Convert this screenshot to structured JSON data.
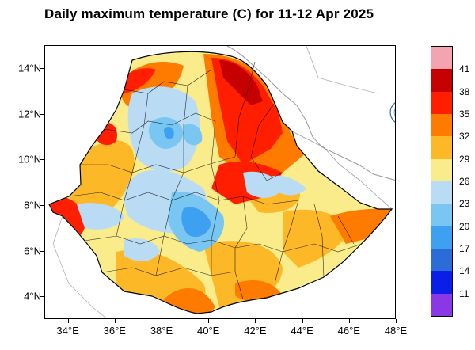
{
  "title": "Daily maximum temperature (C) for 11-12 Apr 2025",
  "map": {
    "lat_labels": [
      {
        "text": "14°N",
        "lat": 14
      },
      {
        "text": "12°N",
        "lat": 12
      },
      {
        "text": "10°N",
        "lat": 10
      },
      {
        "text": "8°N",
        "lat": 8
      },
      {
        "text": "6°N",
        "lat": 6
      },
      {
        "text": "4°N",
        "lat": 4
      }
    ],
    "lon_labels": [
      {
        "text": "34°E",
        "lon": 34
      },
      {
        "text": "36°E",
        "lon": 36
      },
      {
        "text": "38°E",
        "lon": 38
      },
      {
        "text": "40°E",
        "lon": 40
      },
      {
        "text": "42°E",
        "lon": 42
      },
      {
        "text": "44°E",
        "lon": 44
      },
      {
        "text": "46°E",
        "lon": 46
      },
      {
        "text": "48°E",
        "lon": 48
      }
    ],
    "extent": {
      "lon": [
        33,
        48
      ],
      "lat": [
        3,
        15
      ]
    }
  },
  "colorbar": {
    "colors": [
      "#f4a3b1",
      "#c60000",
      "#ff1f00",
      "#ff7b00",
      "#fdb827",
      "#faec8a",
      "#b9dcf4",
      "#79c6f2",
      "#3ea0f0",
      "#2c6cd8",
      "#0a1ee8",
      "#8a37e6"
    ],
    "labels": [
      "41",
      "38",
      "35",
      "32",
      "29",
      "26",
      "23",
      "20",
      "17",
      "14",
      "11"
    ]
  },
  "logo_icon": "meteorology-institute-logo-icon"
}
